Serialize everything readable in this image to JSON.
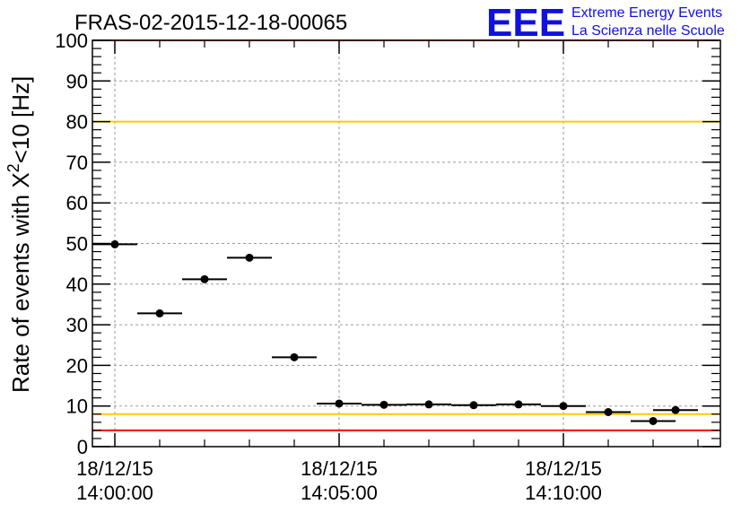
{
  "chart_data": {
    "type": "scatter",
    "title": "FRAS-02-2015-12-18-00065",
    "ylabel_main": "Rate of events with X",
    "ylabel_sup": "2",
    "ylabel_tail": "<10 [Hz]",
    "xlabel": "",
    "ylim": [
      0,
      100
    ],
    "xlim_minutes": [
      -0.5,
      13
    ],
    "y_ticks": [
      "0",
      "10",
      "20",
      "30",
      "40",
      "50",
      "60",
      "70",
      "80",
      "90",
      "100"
    ],
    "x_tick_labels": [
      {
        "minute": 0,
        "date": "18/12/15",
        "time": "14:00:00"
      },
      {
        "minute": 5,
        "date": "18/12/15",
        "time": "14:05:00"
      },
      {
        "minute": 10,
        "date": "18/12/15",
        "time": "14:10:00"
      }
    ],
    "grid": true,
    "points": [
      {
        "x": "14:00:00",
        "y": 49.8
      },
      {
        "x": "14:01:00",
        "y": 32.8
      },
      {
        "x": "14:02:00",
        "y": 41.2
      },
      {
        "x": "14:03:00",
        "y": 46.5
      },
      {
        "x": "14:04:00",
        "y": 22.0
      },
      {
        "x": "14:05:00",
        "y": 10.6
      },
      {
        "x": "14:06:00",
        "y": 10.3
      },
      {
        "x": "14:07:00",
        "y": 10.4
      },
      {
        "x": "14:08:00",
        "y": 10.2
      },
      {
        "x": "14:09:00",
        "y": 10.4
      },
      {
        "x": "14:10:00",
        "y": 10.0
      },
      {
        "x": "14:11:00",
        "y": 8.5
      },
      {
        "x": "14:12:00",
        "y": 6.3
      },
      {
        "x": "14:12:30",
        "y": 9.0
      }
    ],
    "reference_lines": [
      {
        "y": 100,
        "color": "#ff0000"
      },
      {
        "y": 80,
        "color": "#ffcc00"
      },
      {
        "y": 8,
        "color": "#ffcc00"
      },
      {
        "y": 4,
        "color": "#ff0000"
      }
    ]
  },
  "logo": {
    "mark": "EEE",
    "line1": "Extreme Energy Events",
    "line2": "La Scienza nelle Scuole",
    "color": "#1010e0"
  }
}
